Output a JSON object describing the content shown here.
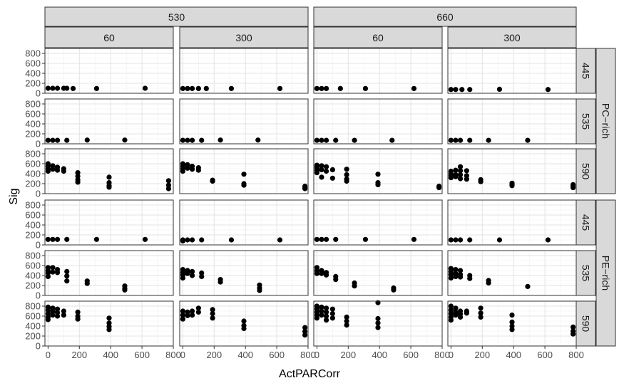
{
  "chart_data": {
    "type": "scatter",
    "xlabel": "ActPARCorr",
    "ylabel": "Sig",
    "xlim": [
      -20,
      800
    ],
    "ylim": [
      0,
      900
    ],
    "x_ticks": [
      0,
      200,
      400,
      600,
      800
    ],
    "y_ticks": [
      0,
      200,
      400,
      600,
      800
    ],
    "grid": true,
    "facet_outer_cols": [
      "530",
      "660"
    ],
    "facet_inner_cols": [
      "60",
      "300"
    ],
    "facet_outer_rows": [
      "PC−rich",
      "PE−rich"
    ],
    "facet_inner_rows": [
      "445",
      "535",
      "590"
    ],
    "panels": [
      {
        "row": 0,
        "col": 0,
        "points": [
          [
            0,
            100
          ],
          [
            30,
            100
          ],
          [
            60,
            100
          ],
          [
            100,
            100
          ],
          [
            120,
            100
          ],
          [
            160,
            95
          ],
          [
            310,
            95
          ],
          [
            620,
            100
          ]
        ]
      },
      {
        "row": 0,
        "col": 1,
        "points": [
          [
            0,
            95
          ],
          [
            30,
            95
          ],
          [
            60,
            95
          ],
          [
            100,
            95
          ],
          [
            150,
            95
          ],
          [
            310,
            95
          ],
          [
            620,
            95
          ]
        ]
      },
      {
        "row": 0,
        "col": 2,
        "points": [
          [
            0,
            95
          ],
          [
            30,
            95
          ],
          [
            60,
            95
          ],
          [
            150,
            95
          ],
          [
            310,
            95
          ],
          [
            620,
            95
          ]
        ]
      },
      {
        "row": 0,
        "col": 3,
        "points": [
          [
            0,
            75
          ],
          [
            30,
            75
          ],
          [
            70,
            75
          ],
          [
            120,
            75
          ],
          [
            310,
            80
          ],
          [
            620,
            75
          ]
        ]
      },
      {
        "row": 1,
        "col": 0,
        "points": [
          [
            0,
            70
          ],
          [
            30,
            70
          ],
          [
            60,
            70
          ],
          [
            120,
            70
          ],
          [
            250,
            75
          ],
          [
            490,
            75
          ]
        ]
      },
      {
        "row": 1,
        "col": 1,
        "points": [
          [
            0,
            70
          ],
          [
            30,
            70
          ],
          [
            60,
            70
          ],
          [
            120,
            70
          ],
          [
            240,
            75
          ],
          [
            480,
            75
          ]
        ]
      },
      {
        "row": 1,
        "col": 2,
        "points": [
          [
            0,
            70
          ],
          [
            30,
            70
          ],
          [
            60,
            70
          ],
          [
            120,
            70
          ],
          [
            240,
            70
          ],
          [
            480,
            70
          ]
        ]
      },
      {
        "row": 1,
        "col": 3,
        "points": [
          [
            0,
            70
          ],
          [
            30,
            70
          ],
          [
            60,
            70
          ],
          [
            120,
            70
          ],
          [
            240,
            70
          ],
          [
            490,
            70
          ]
        ]
      },
      {
        "row": 2,
        "col": 0,
        "points": [
          [
            0,
            600
          ],
          [
            0,
            550
          ],
          [
            0,
            500
          ],
          [
            0,
            450
          ],
          [
            30,
            560
          ],
          [
            30,
            490
          ],
          [
            60,
            530
          ],
          [
            60,
            470
          ],
          [
            100,
            500
          ],
          [
            100,
            450
          ],
          [
            190,
            420
          ],
          [
            190,
            350
          ],
          [
            190,
            280
          ],
          [
            190,
            230
          ],
          [
            390,
            330
          ],
          [
            390,
            220
          ],
          [
            390,
            160
          ],
          [
            390,
            130
          ],
          [
            770,
            260
          ],
          [
            770,
            170
          ],
          [
            770,
            100
          ]
        ]
      },
      {
        "row": 2,
        "col": 1,
        "points": [
          [
            0,
            600
          ],
          [
            0,
            550
          ],
          [
            0,
            500
          ],
          [
            0,
            450
          ],
          [
            30,
            580
          ],
          [
            30,
            510
          ],
          [
            60,
            550
          ],
          [
            60,
            490
          ],
          [
            100,
            520
          ],
          [
            100,
            470
          ],
          [
            190,
            270
          ],
          [
            190,
            250
          ],
          [
            390,
            390
          ],
          [
            390,
            200
          ],
          [
            390,
            170
          ],
          [
            780,
            150
          ],
          [
            780,
            120
          ],
          [
            780,
            100
          ]
        ]
      },
      {
        "row": 2,
        "col": 2,
        "points": [
          [
            0,
            570
          ],
          [
            0,
            520
          ],
          [
            0,
            470
          ],
          [
            0,
            420
          ],
          [
            30,
            560
          ],
          [
            30,
            480
          ],
          [
            30,
            330
          ],
          [
            60,
            540
          ],
          [
            60,
            450
          ],
          [
            100,
            480
          ],
          [
            100,
            310
          ],
          [
            190,
            490
          ],
          [
            190,
            380
          ],
          [
            190,
            290
          ],
          [
            190,
            250
          ],
          [
            390,
            390
          ],
          [
            390,
            220
          ],
          [
            390,
            180
          ],
          [
            780,
            150
          ],
          [
            780,
            120
          ]
        ]
      },
      {
        "row": 2,
        "col": 3,
        "points": [
          [
            0,
            450
          ],
          [
            0,
            400
          ],
          [
            0,
            360
          ],
          [
            0,
            320
          ],
          [
            30,
            470
          ],
          [
            30,
            380
          ],
          [
            30,
            340
          ],
          [
            60,
            540
          ],
          [
            60,
            460
          ],
          [
            60,
            380
          ],
          [
            60,
            300
          ],
          [
            100,
            460
          ],
          [
            100,
            360
          ],
          [
            100,
            290
          ],
          [
            190,
            280
          ],
          [
            190,
            240
          ],
          [
            390,
            210
          ],
          [
            390,
            180
          ],
          [
            390,
            160
          ],
          [
            780,
            180
          ],
          [
            780,
            150
          ],
          [
            780,
            120
          ]
        ]
      },
      {
        "row": 3,
        "col": 0,
        "points": [
          [
            0,
            110
          ],
          [
            30,
            110
          ],
          [
            60,
            110
          ],
          [
            120,
            110
          ],
          [
            310,
            110
          ],
          [
            620,
            110
          ]
        ]
      },
      {
        "row": 3,
        "col": 1,
        "points": [
          [
            0,
            100
          ],
          [
            0,
            80
          ],
          [
            30,
            100
          ],
          [
            60,
            100
          ],
          [
            120,
            100
          ],
          [
            310,
            100
          ],
          [
            620,
            100
          ]
        ]
      },
      {
        "row": 3,
        "col": 2,
        "points": [
          [
            0,
            110
          ],
          [
            30,
            110
          ],
          [
            60,
            110
          ],
          [
            120,
            110
          ],
          [
            310,
            110
          ],
          [
            620,
            110
          ]
        ]
      },
      {
        "row": 3,
        "col": 3,
        "points": [
          [
            0,
            100
          ],
          [
            30,
            100
          ],
          [
            60,
            100
          ],
          [
            120,
            100
          ],
          [
            310,
            100
          ],
          [
            620,
            100
          ]
        ]
      },
      {
        "row": 4,
        "col": 0,
        "points": [
          [
            0,
            560
          ],
          [
            0,
            500
          ],
          [
            0,
            450
          ],
          [
            0,
            380
          ],
          [
            30,
            560
          ],
          [
            30,
            470
          ],
          [
            60,
            520
          ],
          [
            60,
            460
          ],
          [
            120,
            480
          ],
          [
            120,
            390
          ],
          [
            120,
            290
          ],
          [
            250,
            290
          ],
          [
            250,
            240
          ],
          [
            490,
            190
          ],
          [
            490,
            140
          ],
          [
            490,
            110
          ]
        ]
      },
      {
        "row": 4,
        "col": 1,
        "points": [
          [
            0,
            520
          ],
          [
            0,
            460
          ],
          [
            0,
            410
          ],
          [
            0,
            350
          ],
          [
            30,
            500
          ],
          [
            30,
            440
          ],
          [
            60,
            480
          ],
          [
            60,
            400
          ],
          [
            120,
            450
          ],
          [
            120,
            380
          ],
          [
            240,
            320
          ],
          [
            240,
            270
          ],
          [
            490,
            210
          ],
          [
            490,
            150
          ],
          [
            490,
            100
          ]
        ]
      },
      {
        "row": 4,
        "col": 2,
        "points": [
          [
            0,
            560
          ],
          [
            0,
            500
          ],
          [
            0,
            440
          ],
          [
            30,
            500
          ],
          [
            30,
            440
          ],
          [
            60,
            460
          ],
          [
            60,
            410
          ],
          [
            120,
            380
          ],
          [
            120,
            320
          ],
          [
            240,
            250
          ],
          [
            240,
            190
          ],
          [
            490,
            150
          ],
          [
            490,
            110
          ]
        ]
      },
      {
        "row": 4,
        "col": 3,
        "points": [
          [
            0,
            540
          ],
          [
            0,
            480
          ],
          [
            0,
            420
          ],
          [
            0,
            350
          ],
          [
            30,
            520
          ],
          [
            30,
            440
          ],
          [
            30,
            380
          ],
          [
            60,
            500
          ],
          [
            60,
            420
          ],
          [
            60,
            370
          ],
          [
            120,
            400
          ],
          [
            120,
            340
          ],
          [
            240,
            300
          ],
          [
            240,
            250
          ],
          [
            490,
            180
          ]
        ]
      },
      {
        "row": 5,
        "col": 0,
        "points": [
          [
            0,
            780
          ],
          [
            0,
            720
          ],
          [
            0,
            650
          ],
          [
            0,
            580
          ],
          [
            0,
            530
          ],
          [
            30,
            760
          ],
          [
            30,
            690
          ],
          [
            30,
            620
          ],
          [
            60,
            740
          ],
          [
            60,
            670
          ],
          [
            60,
            600
          ],
          [
            100,
            700
          ],
          [
            100,
            620
          ],
          [
            190,
            680
          ],
          [
            190,
            600
          ],
          [
            190,
            540
          ],
          [
            390,
            560
          ],
          [
            390,
            460
          ],
          [
            390,
            390
          ],
          [
            390,
            330
          ]
        ]
      },
      {
        "row": 5,
        "col": 1,
        "points": [
          [
            0,
            700
          ],
          [
            0,
            620
          ],
          [
            0,
            540
          ],
          [
            30,
            680
          ],
          [
            30,
            610
          ],
          [
            60,
            700
          ],
          [
            60,
            620
          ],
          [
            100,
            760
          ],
          [
            100,
            680
          ],
          [
            190,
            730
          ],
          [
            190,
            650
          ],
          [
            190,
            560
          ],
          [
            390,
            500
          ],
          [
            390,
            410
          ],
          [
            390,
            350
          ],
          [
            780,
            370
          ],
          [
            780,
            290
          ],
          [
            780,
            220
          ]
        ]
      },
      {
        "row": 5,
        "col": 2,
        "points": [
          [
            0,
            800
          ],
          [
            0,
            740
          ],
          [
            0,
            680
          ],
          [
            0,
            620
          ],
          [
            0,
            560
          ],
          [
            30,
            780
          ],
          [
            30,
            700
          ],
          [
            30,
            620
          ],
          [
            60,
            760
          ],
          [
            60,
            680
          ],
          [
            60,
            600
          ],
          [
            60,
            520
          ],
          [
            100,
            740
          ],
          [
            100,
            650
          ],
          [
            100,
            560
          ],
          [
            190,
            580
          ],
          [
            190,
            500
          ],
          [
            190,
            420
          ],
          [
            390,
            870
          ],
          [
            390,
            550
          ],
          [
            390,
            460
          ],
          [
            390,
            370
          ]
        ]
      },
      {
        "row": 5,
        "col": 3,
        "points": [
          [
            0,
            800
          ],
          [
            0,
            720
          ],
          [
            0,
            650
          ],
          [
            0,
            580
          ],
          [
            0,
            520
          ],
          [
            30,
            760
          ],
          [
            30,
            680
          ],
          [
            30,
            620
          ],
          [
            60,
            700
          ],
          [
            60,
            640
          ],
          [
            60,
            580
          ],
          [
            100,
            700
          ],
          [
            100,
            660
          ],
          [
            190,
            760
          ],
          [
            190,
            660
          ],
          [
            190,
            580
          ],
          [
            390,
            620
          ],
          [
            390,
            480
          ],
          [
            390,
            400
          ],
          [
            390,
            330
          ],
          [
            780,
            380
          ],
          [
            780,
            300
          ],
          [
            780,
            240
          ]
        ]
      }
    ]
  }
}
